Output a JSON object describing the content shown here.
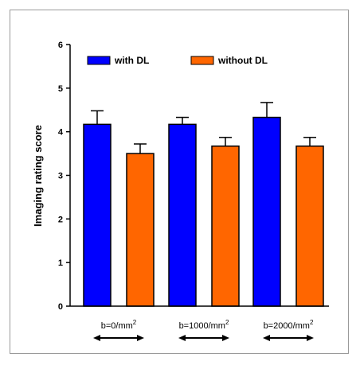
{
  "chart_data": {
    "type": "bar",
    "title": "",
    "xlabel": "",
    "ylabel": "Imaging rating score",
    "ylim": [
      0,
      6
    ],
    "yticks": [
      0,
      1,
      2,
      3,
      4,
      5,
      6
    ],
    "grid": false,
    "legend_position": "top",
    "categories": [
      {
        "base": "b=0/mm",
        "sup": "2"
      },
      {
        "base": "b=1000/mm",
        "sup": "2"
      },
      {
        "base": "b=2000/mm",
        "sup": "2"
      }
    ],
    "series": [
      {
        "name": "with DL",
        "color": "#0000ff",
        "values": [
          4.17,
          4.17,
          4.33
        ],
        "errors": [
          0.31,
          0.16,
          0.34
        ]
      },
      {
        "name": "without DL",
        "color": "#ff6600",
        "values": [
          3.5,
          3.67,
          3.67
        ],
        "errors": [
          0.22,
          0.2,
          0.2
        ]
      }
    ]
  }
}
